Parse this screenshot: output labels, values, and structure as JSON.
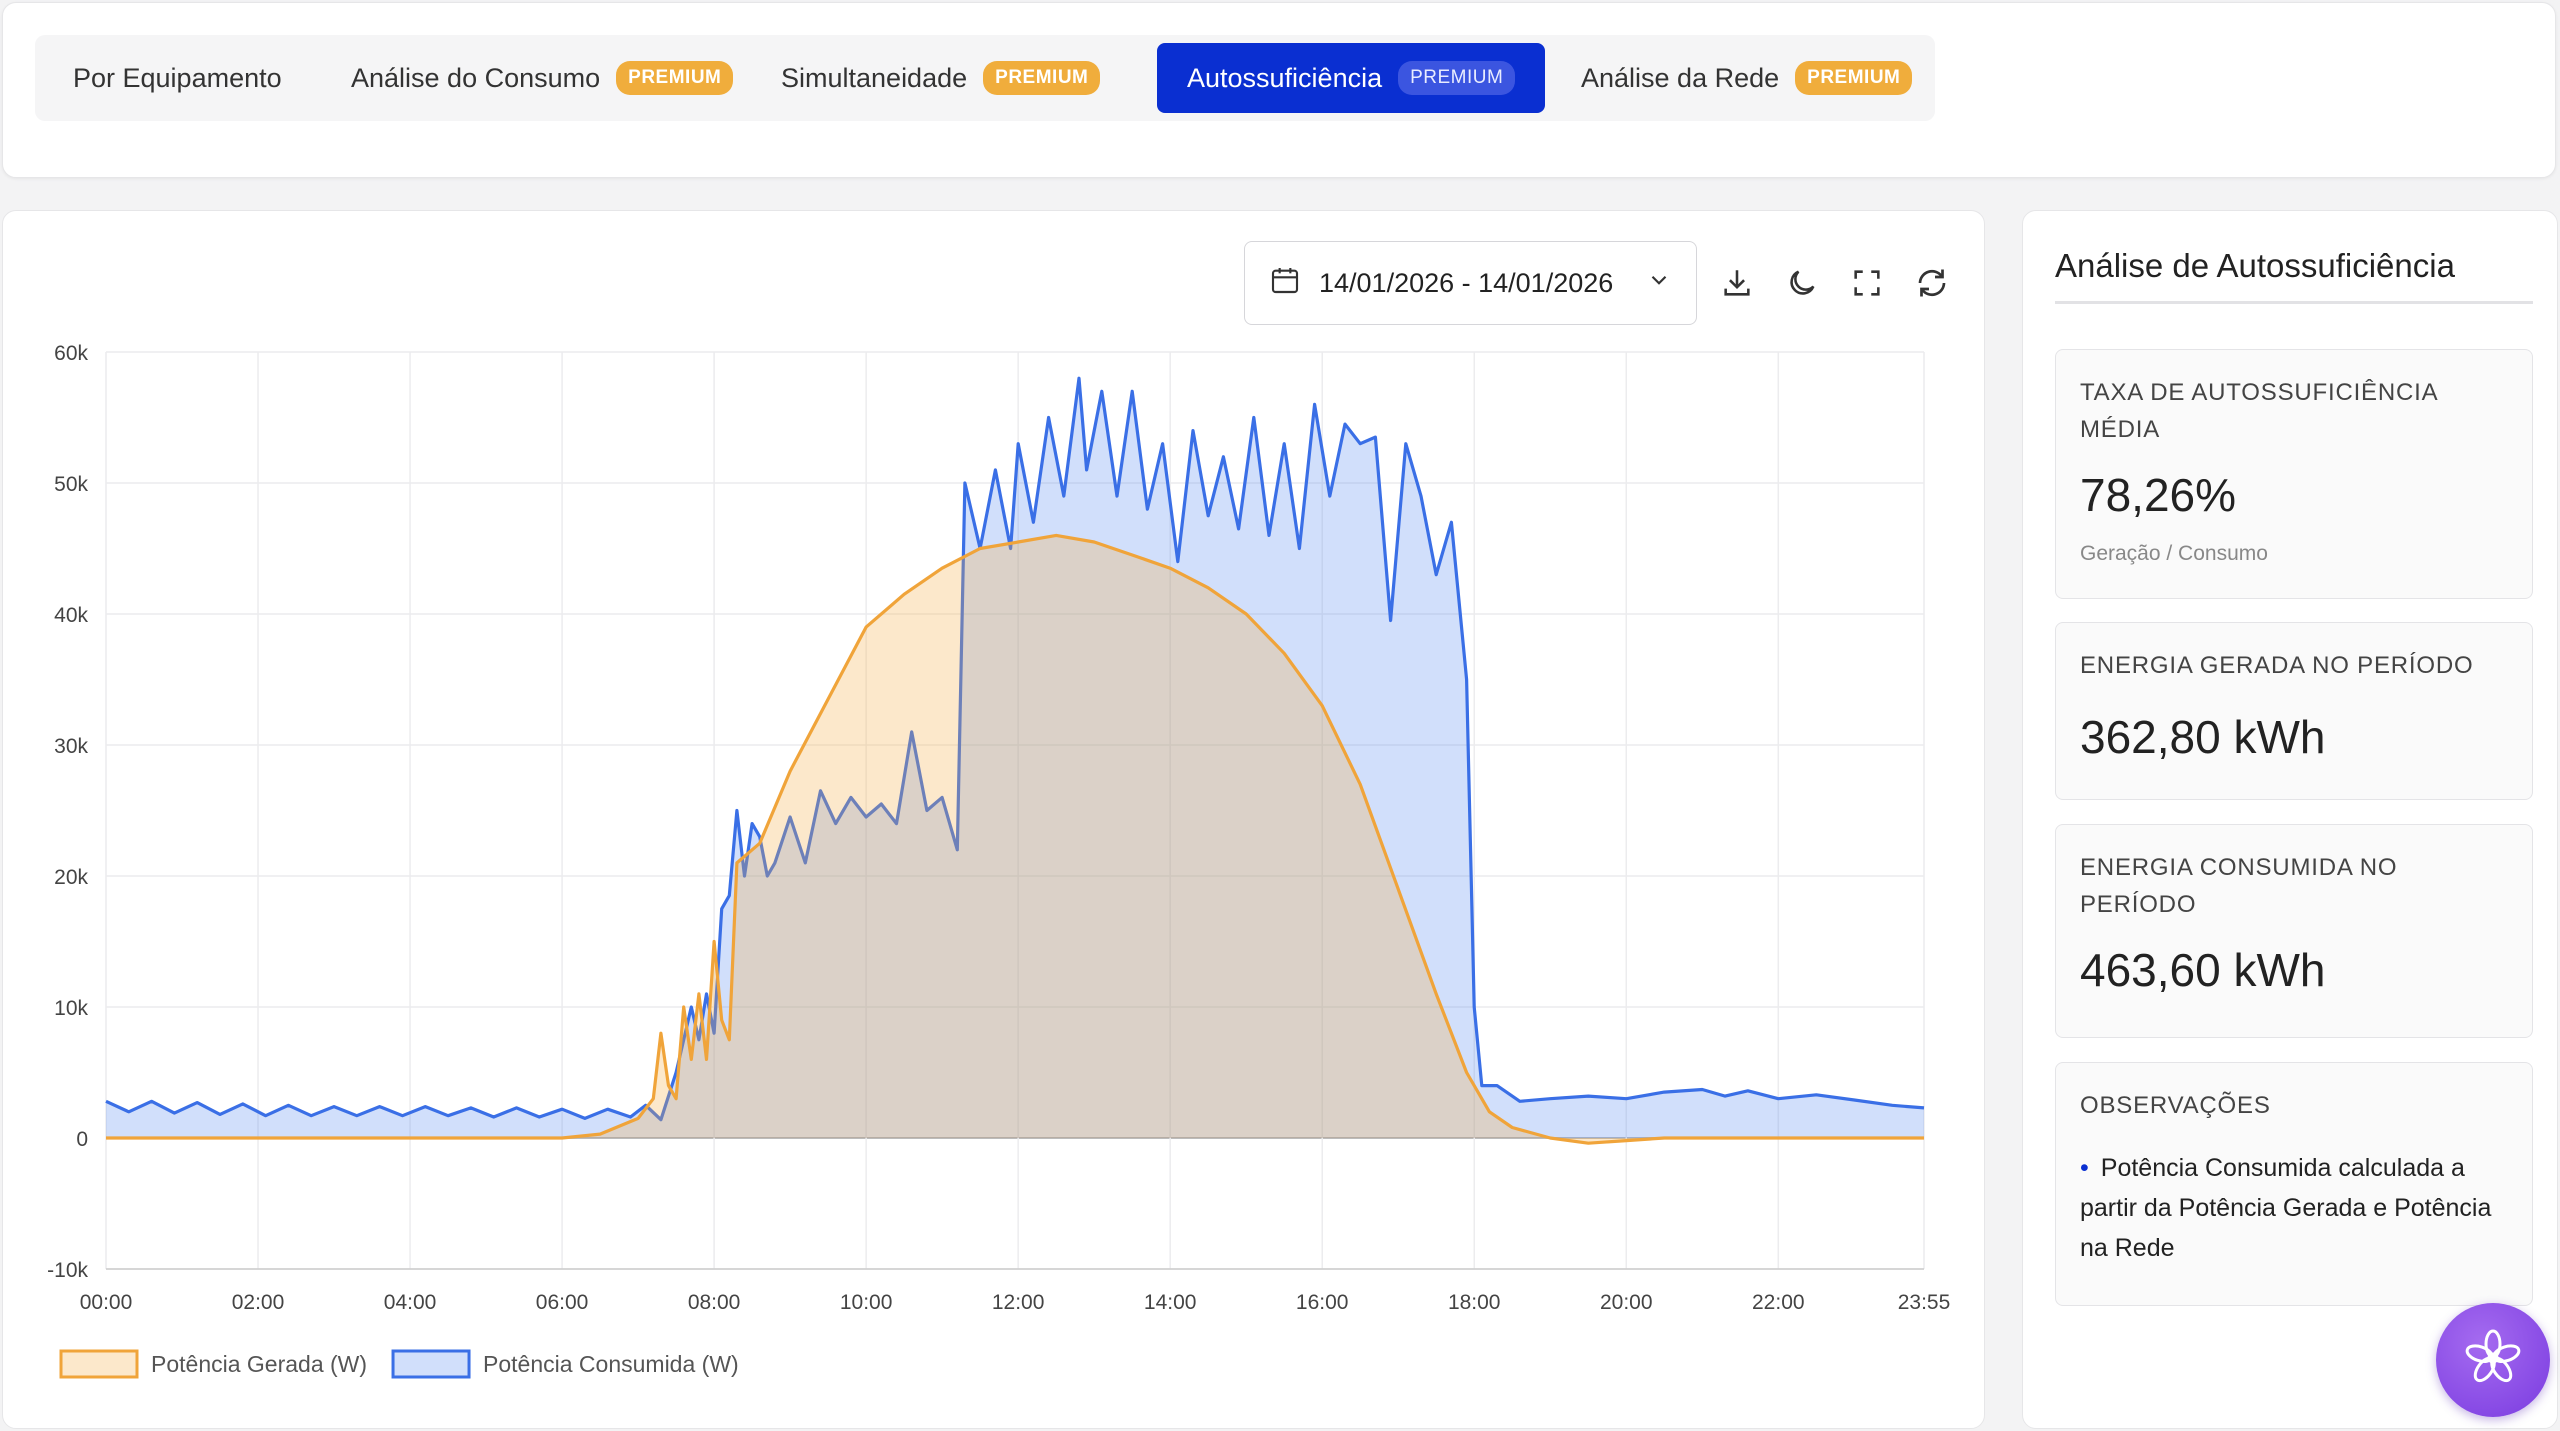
{
  "tabs": [
    {
      "label": "Por Equipamento",
      "badge": ""
    },
    {
      "label": "Análise do Consumo",
      "badge": "PREMIUM"
    },
    {
      "label": "Simultaneidade",
      "badge": "PREMIUM"
    },
    {
      "label": "Autossuficiência",
      "badge": "PREMIUM",
      "active": true
    },
    {
      "label": "Análise da Rede",
      "badge": "PREMIUM"
    }
  ],
  "toolbar": {
    "date_range": "14/01/2026 - 14/01/2026",
    "icons": [
      "calendar-icon",
      "chevron-down-icon",
      "download-icon",
      "moon-icon",
      "fullscreen-icon",
      "refresh-icon"
    ]
  },
  "colors": {
    "accent": "#0a2fd1",
    "premium": "#f0ad3c",
    "generated": "#f0a43a",
    "consumed": "#3a6fe6"
  },
  "chart_data": {
    "type": "area",
    "x_ticks": [
      "00:00",
      "02:00",
      "04:00",
      "06:00",
      "08:00",
      "10:00",
      "12:00",
      "14:00",
      "16:00",
      "18:00",
      "20:00",
      "22:00",
      "23:55"
    ],
    "y_ticks": [
      "60k",
      "50k",
      "40k",
      "30k",
      "20k",
      "10k",
      "0",
      "-10k"
    ],
    "ylim": [
      -10000,
      60000
    ],
    "xlim_hours": [
      0,
      23.917
    ],
    "grid": true,
    "legend_position": "bottom-left",
    "series": [
      {
        "name": "Potência Gerada (W)",
        "color": "#f0a43a",
        "fill": "rgba(244,172,70,0.28)",
        "points": [
          [
            0,
            0
          ],
          [
            6,
            0
          ],
          [
            6.5,
            300
          ],
          [
            7,
            1500
          ],
          [
            7.2,
            3000
          ],
          [
            7.3,
            8000
          ],
          [
            7.4,
            4000
          ],
          [
            7.5,
            3000
          ],
          [
            7.6,
            10000
          ],
          [
            7.7,
            6000
          ],
          [
            7.8,
            11000
          ],
          [
            7.9,
            6000
          ],
          [
            8.0,
            15000
          ],
          [
            8.1,
            9000
          ],
          [
            8.2,
            7500
          ],
          [
            8.3,
            21000
          ],
          [
            8.6,
            22500
          ],
          [
            9.0,
            28000
          ],
          [
            9.5,
            33500
          ],
          [
            10.0,
            39000
          ],
          [
            10.5,
            41500
          ],
          [
            11.0,
            43500
          ],
          [
            11.5,
            45000
          ],
          [
            12.0,
            45500
          ],
          [
            12.5,
            46000
          ],
          [
            13.0,
            45500
          ],
          [
            13.5,
            44500
          ],
          [
            14.0,
            43500
          ],
          [
            14.5,
            42000
          ],
          [
            15.0,
            40000
          ],
          [
            15.5,
            37000
          ],
          [
            16.0,
            33000
          ],
          [
            16.5,
            27000
          ],
          [
            17.0,
            19000
          ],
          [
            17.5,
            11000
          ],
          [
            17.9,
            5000
          ],
          [
            18.2,
            2000
          ],
          [
            18.5,
            800
          ],
          [
            19.0,
            0
          ],
          [
            19.5,
            -400
          ],
          [
            20.0,
            -200
          ],
          [
            20.5,
            0
          ],
          [
            23.917,
            0
          ]
        ]
      },
      {
        "name": "Potência Consumida (W)",
        "color": "#3a6fe6",
        "fill": "rgba(90,140,240,0.28)",
        "points": [
          [
            0,
            2800
          ],
          [
            0.3,
            2000
          ],
          [
            0.6,
            2800
          ],
          [
            0.9,
            1900
          ],
          [
            1.2,
            2700
          ],
          [
            1.5,
            1800
          ],
          [
            1.8,
            2600
          ],
          [
            2.1,
            1700
          ],
          [
            2.4,
            2500
          ],
          [
            2.7,
            1700
          ],
          [
            3.0,
            2400
          ],
          [
            3.3,
            1700
          ],
          [
            3.6,
            2400
          ],
          [
            3.9,
            1700
          ],
          [
            4.2,
            2400
          ],
          [
            4.5,
            1700
          ],
          [
            4.8,
            2300
          ],
          [
            5.1,
            1600
          ],
          [
            5.4,
            2300
          ],
          [
            5.7,
            1600
          ],
          [
            6.0,
            2200
          ],
          [
            6.3,
            1500
          ],
          [
            6.6,
            2200
          ],
          [
            6.9,
            1600
          ],
          [
            7.1,
            2500
          ],
          [
            7.3,
            1400
          ],
          [
            7.5,
            5000
          ],
          [
            7.7,
            10000
          ],
          [
            7.8,
            7500
          ],
          [
            7.9,
            11000
          ],
          [
            8.0,
            8000
          ],
          [
            8.1,
            17500
          ],
          [
            8.2,
            18500
          ],
          [
            8.3,
            25000
          ],
          [
            8.4,
            20000
          ],
          [
            8.5,
            24000
          ],
          [
            8.6,
            23000
          ],
          [
            8.7,
            20000
          ],
          [
            8.8,
            21000
          ],
          [
            9.0,
            24500
          ],
          [
            9.2,
            21000
          ],
          [
            9.4,
            26500
          ],
          [
            9.6,
            24000
          ],
          [
            9.8,
            26000
          ],
          [
            10.0,
            24500
          ],
          [
            10.2,
            25500
          ],
          [
            10.4,
            24000
          ],
          [
            10.6,
            31000
          ],
          [
            10.8,
            25000
          ],
          [
            11.0,
            26000
          ],
          [
            11.2,
            22000
          ],
          [
            11.3,
            50000
          ],
          [
            11.5,
            45000
          ],
          [
            11.7,
            51000
          ],
          [
            11.9,
            45000
          ],
          [
            12.0,
            53000
          ],
          [
            12.2,
            47000
          ],
          [
            12.4,
            55000
          ],
          [
            12.6,
            49000
          ],
          [
            12.8,
            58000
          ],
          [
            12.9,
            51000
          ],
          [
            13.1,
            57000
          ],
          [
            13.3,
            49000
          ],
          [
            13.5,
            57000
          ],
          [
            13.7,
            48000
          ],
          [
            13.9,
            53000
          ],
          [
            14.1,
            44000
          ],
          [
            14.3,
            54000
          ],
          [
            14.5,
            47500
          ],
          [
            14.7,
            52000
          ],
          [
            14.9,
            46500
          ],
          [
            15.1,
            55000
          ],
          [
            15.3,
            46000
          ],
          [
            15.5,
            53000
          ],
          [
            15.7,
            45000
          ],
          [
            15.9,
            56000
          ],
          [
            16.1,
            49000
          ],
          [
            16.3,
            54500
          ],
          [
            16.5,
            53000
          ],
          [
            16.7,
            53500
          ],
          [
            16.9,
            39500
          ],
          [
            17.1,
            53000
          ],
          [
            17.3,
            49000
          ],
          [
            17.5,
            43000
          ],
          [
            17.7,
            47000
          ],
          [
            17.9,
            35000
          ],
          [
            18.0,
            10000
          ],
          [
            18.1,
            4000
          ],
          [
            18.3,
            4000
          ],
          [
            18.6,
            2800
          ],
          [
            19.0,
            3000
          ],
          [
            19.5,
            3200
          ],
          [
            20.0,
            3000
          ],
          [
            20.5,
            3500
          ],
          [
            21.0,
            3700
          ],
          [
            21.3,
            3200
          ],
          [
            21.6,
            3600
          ],
          [
            22.0,
            3000
          ],
          [
            22.5,
            3300
          ],
          [
            23.0,
            2900
          ],
          [
            23.5,
            2500
          ],
          [
            23.917,
            2300
          ]
        ]
      }
    ]
  },
  "sidebar": {
    "title": "Análise de Autossuficiência",
    "metrics": [
      {
        "label": "TAXA DE AUTOSSUFICIÊNCIA MÉDIA",
        "value": "78,26%",
        "sub": "Geração / Consumo"
      },
      {
        "label": "ENERGIA GERADA NO PERÍODO",
        "value": "362,80 kWh"
      },
      {
        "label": "ENERGIA CONSUMIDA NO PERÍODO",
        "value": "463,60 kWh"
      }
    ],
    "observations": {
      "label": "OBSERVAÇÕES",
      "items": [
        "Potência Consumida calculada a partir da Potência Gerada e Potência na Rede"
      ]
    }
  },
  "assistant_icon": "flower-icon"
}
